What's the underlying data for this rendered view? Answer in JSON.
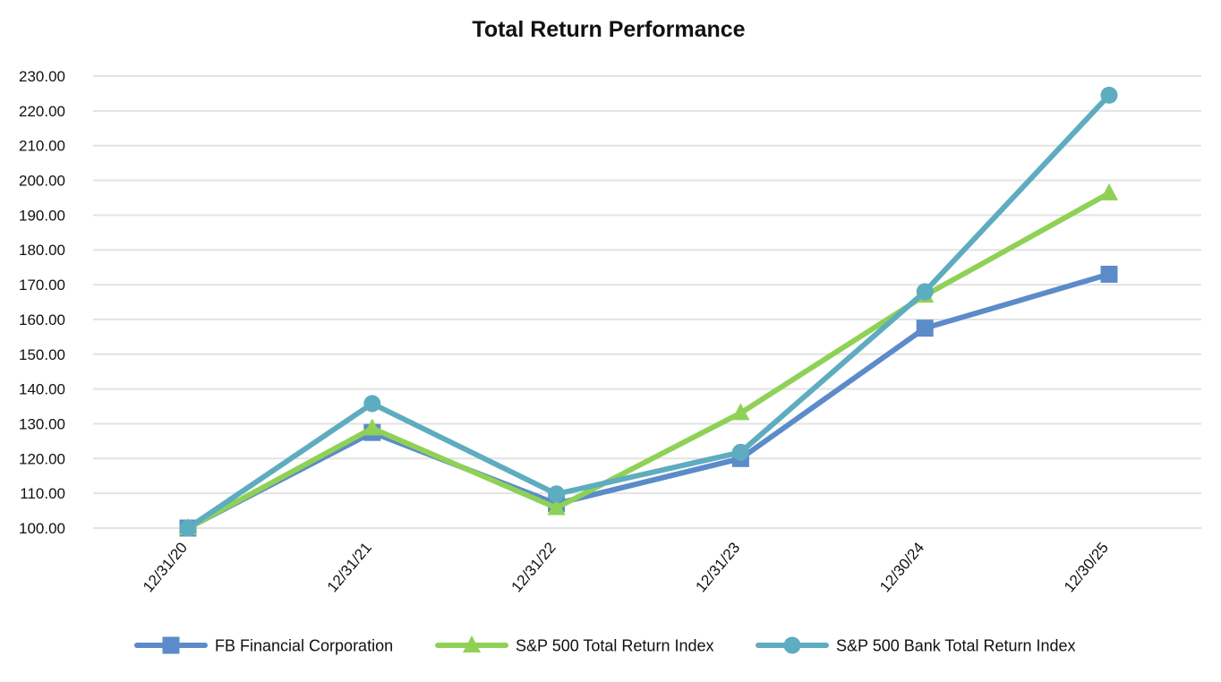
{
  "chart_data": {
    "type": "line",
    "title": "Total Return Performance",
    "xlabel": "",
    "ylabel": "",
    "categories": [
      "12/31/20",
      "12/31/21",
      "12/31/22",
      "12/31/23",
      "12/30/24",
      "12/30/25"
    ],
    "yticks": [
      "100.00",
      "110.00",
      "120.00",
      "130.00",
      "140.00",
      "150.00",
      "160.00",
      "170.00",
      "180.00",
      "190.00",
      "200.00",
      "210.00",
      "220.00",
      "230.00"
    ],
    "ylim": [
      100,
      230
    ],
    "grid": "horizontal",
    "legend_position": "bottom",
    "series": [
      {
        "name": "FB Financial Corporation",
        "color": "#5B8BC9",
        "marker": "square",
        "values": [
          100.0,
          127.5,
          107.0,
          120.0,
          157.5,
          173.0
        ]
      },
      {
        "name": "S&P 500 Total Return Index",
        "color": "#8FD156",
        "marker": "triangle",
        "values": [
          100.0,
          128.7,
          105.8,
          133.1,
          166.9,
          196.3
        ]
      },
      {
        "name": "S&P 500 Bank Total Return Index",
        "color": "#5EACBF",
        "marker": "circle",
        "values": [
          100.0,
          135.8,
          109.8,
          121.8,
          168.0,
          224.5
        ]
      }
    ]
  }
}
